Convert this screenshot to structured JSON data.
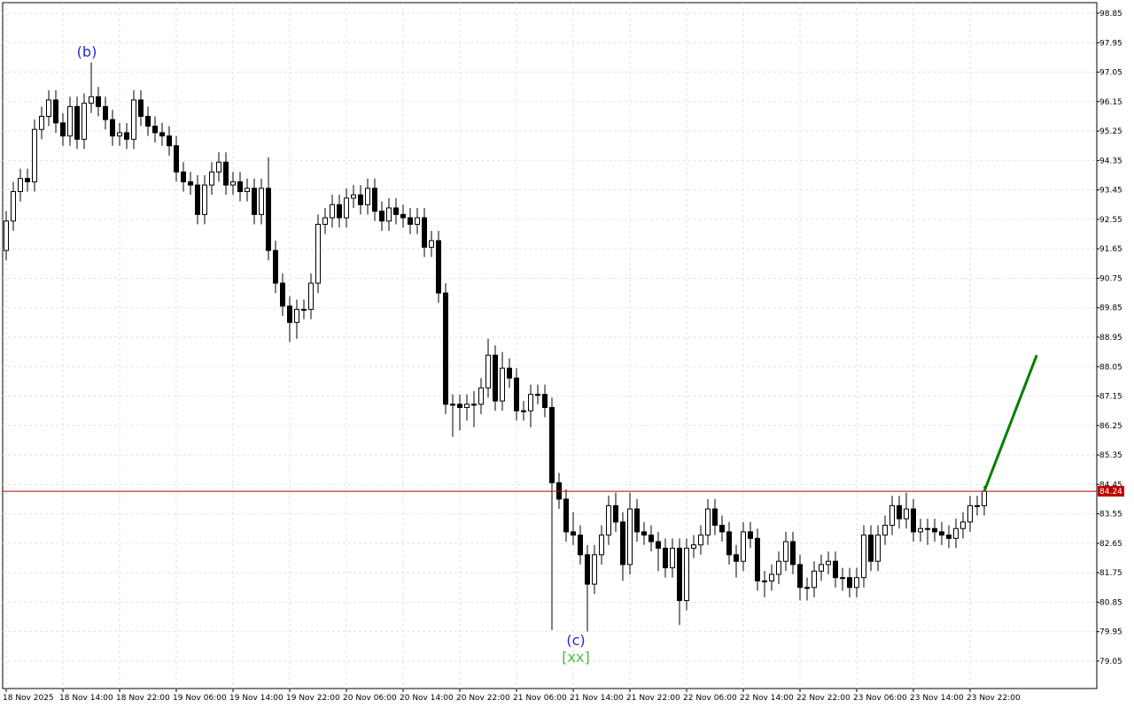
{
  "chart_data": {
    "type": "candlestick",
    "up_color": "#ffffff",
    "down_color": "#000000",
    "grid": true,
    "ylim": [
      78.21,
      99.175
    ],
    "yticks": [
      98.85,
      97.95,
      97.05,
      96.15,
      95.25,
      94.35,
      93.45,
      92.55,
      91.65,
      90.75,
      89.85,
      88.95,
      88.05,
      87.15,
      86.25,
      85.35,
      84.45,
      83.55,
      82.65,
      81.75,
      80.85,
      79.95,
      79.05
    ],
    "xlim": [
      -0.5,
      153.875
    ],
    "xticks": [
      {
        "value": 0,
        "label": "18 Nov 2025"
      },
      {
        "value": 8,
        "label": "18 Nov 14:00"
      },
      {
        "value": 16,
        "label": "18 Nov 22:00"
      },
      {
        "value": 24,
        "label": "19 Nov 06:00"
      },
      {
        "value": 32,
        "label": "19 Nov 14:00"
      },
      {
        "value": 40,
        "label": "19 Nov 22:00"
      },
      {
        "value": 48,
        "label": "20 Nov 06:00"
      },
      {
        "value": 56,
        "label": "20 Nov 14:00"
      },
      {
        "value": 64,
        "label": "20 Nov 22:00"
      },
      {
        "value": 72,
        "label": "21 Nov 06:00"
      },
      {
        "value": 80,
        "label": "21 Nov 14:00"
      },
      {
        "value": 88,
        "label": "21 Nov 22:00"
      },
      {
        "value": 96,
        "label": "22 Nov 06:00"
      },
      {
        "value": 104,
        "label": "22 Nov 14:00"
      },
      {
        "value": 112,
        "label": "22 Nov 22:00"
      },
      {
        "value": 120,
        "label": "23 Nov 06:00"
      },
      {
        "value": 128,
        "label": "23 Nov 14:00"
      },
      {
        "value": 136,
        "label": "23 Nov 22:00"
      }
    ],
    "open": [
      91.6,
      92.5,
      93.4,
      93.8,
      93.7,
      95.3,
      95.7,
      96.2,
      95.5,
      95.1,
      96.0,
      95.0,
      96.1,
      96.3,
      96.0,
      95.6,
      95.1,
      95.2,
      95.0,
      96.2,
      95.7,
      95.4,
      95.2,
      95.1,
      94.8,
      94.0,
      93.7,
      93.6,
      92.7,
      93.6,
      94.0,
      94.3,
      93.6,
      93.7,
      93.4,
      93.5,
      92.7,
      93.5,
      91.6,
      90.6,
      89.9,
      89.4,
      89.8,
      89.8,
      90.6,
      92.4,
      92.6,
      93.0,
      92.6,
      93.2,
      93.3,
      93.0,
      93.5,
      92.8,
      92.5,
      92.9,
      92.7,
      92.6,
      92.4,
      92.6,
      91.7,
      91.9,
      90.3,
      86.9,
      86.9,
      86.8,
      86.9,
      86.9,
      87.4,
      88.4,
      87.0,
      88.0,
      87.7,
      86.7,
      86.7,
      87.2,
      87.2,
      86.8,
      84.5,
      84.0,
      83.0,
      82.9,
      82.3,
      81.4,
      82.3,
      82.9,
      83.8,
      83.3,
      82.0,
      83.7,
      83.0,
      82.9,
      82.7,
      82.5,
      81.9,
      82.5,
      80.9,
      82.5,
      82.6,
      82.9,
      83.7,
      83.2,
      83.0,
      82.3,
      82.1,
      83.0,
      82.8,
      81.5,
      81.5,
      81.7,
      82.1,
      82.7,
      82.0,
      81.3,
      81.3,
      81.8,
      82.0,
      82.1,
      81.6,
      81.6,
      81.3,
      81.6,
      82.9,
      82.1,
      82.9,
      83.2,
      83.8,
      83.4,
      83.7,
      83.0,
      83.1,
      83.1,
      83.0,
      82.9,
      82.8,
      83.1,
      83.3,
      83.8,
      83.8
    ],
    "high": [
      92.8,
      93.7,
      94.1,
      94.1,
      95.6,
      96.0,
      96.5,
      96.5,
      95.8,
      96.3,
      96.3,
      96.4,
      97.35,
      96.6,
      96.3,
      95.9,
      95.5,
      95.5,
      96.5,
      96.5,
      96.0,
      95.7,
      95.5,
      95.4,
      95.1,
      94.3,
      94.0,
      93.9,
      93.9,
      94.3,
      94.6,
      94.6,
      94.0,
      94.0,
      93.8,
      93.8,
      93.8,
      94.45,
      91.9,
      90.9,
      90.2,
      90.1,
      90.1,
      90.9,
      92.7,
      92.9,
      93.3,
      93.3,
      93.5,
      93.6,
      93.6,
      93.8,
      93.8,
      93.1,
      93.2,
      93.2,
      93.0,
      92.9,
      92.9,
      92.9,
      92.2,
      92.2,
      90.6,
      87.2,
      87.2,
      87.2,
      87.3,
      87.7,
      88.9,
      88.7,
      88.5,
      88.3,
      88.0,
      87.0,
      87.5,
      87.5,
      87.5,
      87.1,
      84.8,
      84.3,
      83.6,
      83.2,
      82.6,
      82.6,
      83.2,
      84.1,
      84.2,
      83.6,
      84.2,
      84.0,
      83.3,
      83.2,
      83.0,
      82.8,
      82.8,
      82.8,
      82.8,
      82.9,
      83.2,
      84.0,
      84.0,
      83.5,
      83.3,
      82.6,
      83.3,
      83.3,
      83.1,
      81.8,
      82.0,
      82.4,
      83.0,
      83.0,
      82.3,
      81.6,
      82.1,
      82.3,
      82.4,
      82.4,
      81.9,
      81.9,
      81.9,
      83.2,
      83.2,
      83.2,
      83.5,
      84.1,
      84.1,
      84.2,
      84.0,
      83.4,
      83.4,
      83.4,
      83.3,
      83.2,
      83.4,
      83.6,
      84.1,
      84.1,
      84.4
    ],
    "low": [
      91.3,
      92.2,
      93.1,
      93.4,
      93.4,
      95.0,
      95.4,
      95.2,
      94.8,
      94.8,
      94.7,
      94.7,
      95.8,
      95.7,
      95.3,
      94.8,
      94.8,
      94.7,
      94.7,
      95.4,
      95.1,
      94.9,
      94.8,
      94.5,
      93.7,
      93.4,
      93.3,
      92.4,
      92.4,
      93.3,
      93.7,
      93.3,
      93.3,
      93.1,
      93.1,
      92.4,
      92.4,
      91.3,
      90.3,
      89.6,
      88.8,
      88.9,
      89.5,
      89.5,
      90.3,
      92.1,
      92.3,
      92.3,
      92.3,
      92.9,
      92.7,
      92.7,
      92.5,
      92.2,
      92.2,
      92.4,
      92.3,
      92.1,
      92.1,
      91.4,
      91.4,
      90.0,
      86.6,
      85.9,
      86.1,
      86.4,
      86.2,
      86.6,
      87.1,
      86.7,
      86.7,
      87.4,
      86.4,
      86.4,
      86.2,
      86.9,
      86.5,
      80.0,
      83.7,
      82.7,
      82.6,
      82.0,
      79.95,
      81.1,
      82.0,
      82.6,
      83.0,
      81.5,
      81.7,
      82.7,
      82.6,
      82.4,
      81.8,
      81.6,
      81.6,
      80.15,
      80.6,
      82.2,
      82.3,
      82.6,
      82.9,
      82.7,
      82.0,
      81.6,
      81.8,
      82.5,
      81.2,
      81.0,
      81.2,
      81.4,
      81.8,
      81.7,
      80.9,
      80.9,
      81.0,
      81.5,
      81.7,
      81.3,
      81.2,
      81.0,
      81.0,
      81.3,
      81.8,
      81.8,
      82.6,
      82.9,
      83.1,
      83.1,
      82.7,
      82.7,
      82.6,
      82.7,
      82.6,
      82.5,
      82.5,
      82.8,
      83.0,
      83.5,
      83.5
    ],
    "close": [
      92.5,
      93.4,
      93.8,
      93.7,
      95.3,
      95.7,
      96.2,
      95.5,
      95.1,
      96.0,
      95.0,
      96.1,
      96.3,
      96.0,
      95.6,
      95.1,
      95.2,
      95.0,
      96.2,
      95.7,
      95.4,
      95.2,
      95.1,
      94.8,
      94.0,
      93.7,
      93.6,
      92.7,
      93.6,
      94.0,
      94.3,
      93.6,
      93.7,
      93.4,
      93.5,
      92.7,
      93.5,
      91.6,
      90.6,
      89.9,
      89.4,
      89.8,
      89.8,
      90.6,
      92.4,
      92.6,
      93.0,
      92.6,
      93.2,
      93.3,
      93.0,
      93.5,
      92.8,
      92.5,
      92.9,
      92.7,
      92.6,
      92.4,
      92.6,
      91.7,
      91.9,
      90.3,
      86.9,
      86.9,
      86.8,
      86.9,
      86.9,
      87.4,
      88.4,
      87.0,
      88.0,
      87.7,
      86.7,
      86.7,
      87.2,
      87.2,
      86.8,
      84.5,
      84.0,
      83.0,
      82.9,
      82.3,
      81.4,
      82.3,
      82.9,
      83.8,
      83.3,
      82.0,
      83.7,
      83.0,
      82.9,
      82.7,
      82.5,
      81.9,
      82.5,
      80.9,
      82.5,
      82.6,
      82.9,
      83.7,
      83.2,
      83.0,
      82.3,
      82.1,
      83.0,
      82.8,
      81.5,
      81.5,
      81.7,
      82.1,
      82.7,
      82.0,
      81.3,
      81.3,
      81.8,
      82.0,
      82.1,
      81.6,
      81.6,
      81.3,
      81.6,
      82.9,
      82.1,
      82.9,
      83.2,
      83.8,
      83.4,
      83.7,
      83.0,
      83.1,
      83.1,
      83.0,
      82.9,
      82.8,
      83.1,
      83.3,
      83.8,
      83.8,
      84.24
    ],
    "price_line": {
      "value": 84.24,
      "color": "#c00000"
    },
    "forecast": {
      "color": "#008000",
      "x": [
        138,
        145.4
      ],
      "values": [
        84.24,
        88.4
      ]
    },
    "annotations": [
      {
        "text": "(b)",
        "color": "#2828c8"
      },
      {
        "text": "(c)",
        "color": "#2828c8"
      },
      {
        "text": "[xx]",
        "color": "#44c044"
      }
    ]
  }
}
